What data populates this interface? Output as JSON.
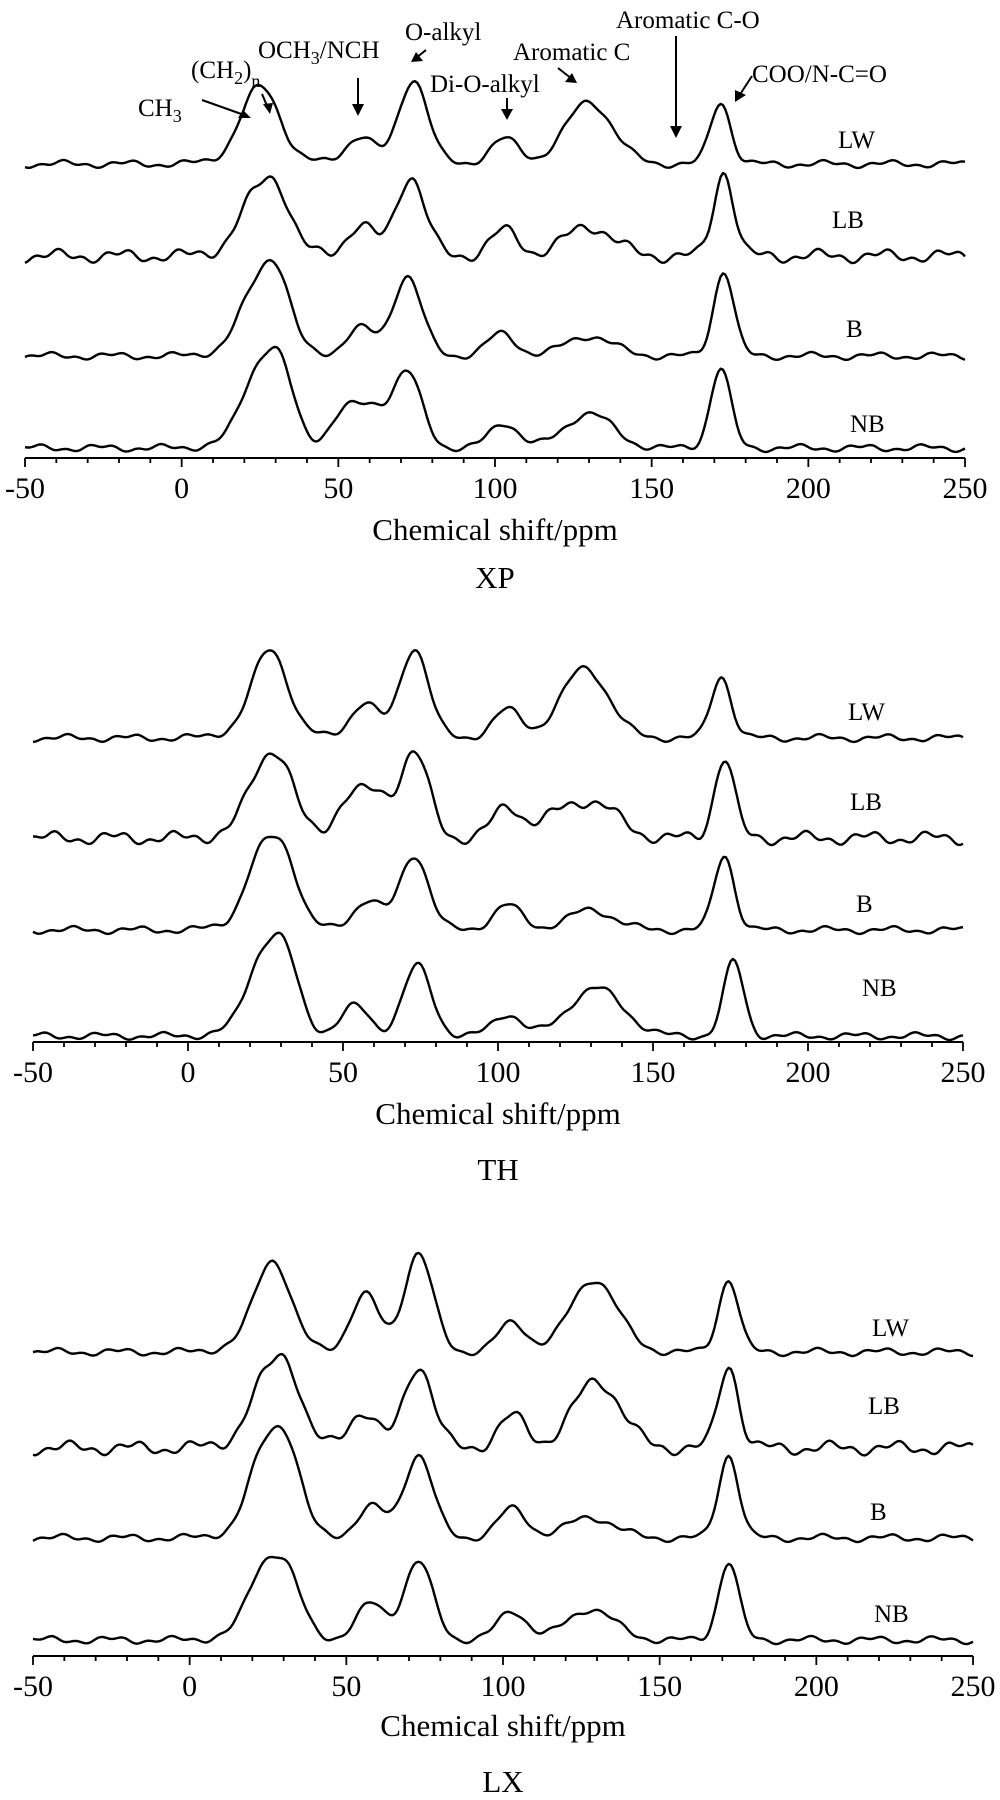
{
  "chart_data": [
    {
      "type": "line",
      "title": "XP",
      "xlabel": "Chemical shift/ppm",
      "ylabel": "",
      "xlim": [
        -50,
        250
      ],
      "xticks": [
        "-50",
        "0",
        "50",
        "100",
        "150",
        "200",
        "250"
      ],
      "legend_position": "right, beside each trace",
      "grid": false,
      "series": [
        {
          "name": "LW",
          "peaks": [
            [
              22,
              0.35
            ],
            [
              28,
              0.38
            ],
            [
              57,
              0.28
            ],
            [
              74,
              0.85
            ],
            [
              103,
              0.25
            ],
            [
              130,
              0.62
            ],
            [
              172,
              0.62
            ]
          ]
        },
        {
          "name": "LB",
          "peaks": [
            [
              22,
              0.3
            ],
            [
              30,
              0.55
            ],
            [
              57,
              0.3
            ],
            [
              73,
              0.8
            ],
            [
              103,
              0.25
            ],
            [
              130,
              0.3
            ],
            [
              173,
              0.85
            ]
          ]
        },
        {
          "name": "B",
          "peaks": [
            [
              22,
              0.35
            ],
            [
              30,
              0.72
            ],
            [
              57,
              0.28
            ],
            [
              72,
              0.8
            ],
            [
              102,
              0.22
            ],
            [
              130,
              0.2
            ],
            [
              173,
              0.85
            ]
          ]
        },
        {
          "name": "NB",
          "peaks": [
            [
              23,
              0.45
            ],
            [
              31,
              0.72
            ],
            [
              52,
              0.35
            ],
            [
              61,
              0.35
            ],
            [
              72,
              0.75
            ],
            [
              103,
              0.25
            ],
            [
              130,
              0.35
            ],
            [
              172,
              0.8
            ]
          ]
        }
      ],
      "annotations": [
        "CH3",
        "(CH2)n",
        "OCH3/NCH",
        "O-alkyl",
        "Di-O-alkyl",
        "Aromatic C",
        "Aromatic C-O",
        "COO/N-C=O"
      ]
    },
    {
      "type": "line",
      "title": "TH",
      "xlabel": "Chemical shift/ppm",
      "ylabel": "",
      "xlim": [
        -50,
        250
      ],
      "xticks": [
        "-50",
        "0",
        "50",
        "100",
        "150",
        "200",
        "250"
      ],
      "legend_position": "right, beside each trace",
      "grid": false,
      "series": [
        {
          "name": "LW",
          "peaks": [
            [
              24,
              0.4
            ],
            [
              29,
              0.42
            ],
            [
              57,
              0.35
            ],
            [
              73,
              0.9
            ],
            [
              103,
              0.28
            ],
            [
              128,
              0.7
            ],
            [
              172,
              0.62
            ]
          ]
        },
        {
          "name": "LB",
          "peaks": [
            [
              23,
              0.38
            ],
            [
              30,
              0.55
            ],
            [
              52,
              0.38
            ],
            [
              61,
              0.38
            ],
            [
              73,
              0.85
            ],
            [
              103,
              0.3
            ],
            [
              120,
              0.2
            ],
            [
              132,
              0.3
            ],
            [
              173,
              0.8
            ]
          ]
        },
        {
          "name": "B",
          "peaks": [
            [
              23,
              0.5
            ],
            [
              31,
              0.6
            ],
            [
              58,
              0.3
            ],
            [
              73,
              0.75
            ],
            [
              103,
              0.25
            ],
            [
              130,
              0.2
            ],
            [
              173,
              0.75
            ]
          ]
        },
        {
          "name": "NB",
          "peaks": [
            [
              23,
              0.5
            ],
            [
              31,
              0.7
            ],
            [
              54,
              0.3
            ],
            [
              74,
              0.7
            ],
            [
              103,
              0.22
            ],
            [
              128,
              0.3
            ],
            [
              136,
              0.25
            ],
            [
              176,
              0.75
            ]
          ]
        }
      ]
    },
    {
      "type": "line",
      "title": "LX",
      "xlabel": "Chemical shift/ppm",
      "ylabel": "",
      "xlim": [
        -50,
        250
      ],
      "xticks": [
        "-50",
        "0",
        "50",
        "100",
        "150",
        "200",
        "250"
      ],
      "legend_position": "right, beside each trace",
      "grid": false,
      "series": [
        {
          "name": "LW",
          "peaks": [
            [
              24,
              0.4
            ],
            [
              29,
              0.42
            ],
            [
              56,
              0.55
            ],
            [
              73,
              0.95
            ],
            [
              103,
              0.28
            ],
            [
              129,
              0.7
            ],
            [
              172,
              0.7
            ]
          ]
        },
        {
          "name": "LB",
          "peaks": [
            [
              23,
              0.35
            ],
            [
              31,
              0.65
            ],
            [
              55,
              0.35
            ],
            [
              73,
              0.8
            ],
            [
              103,
              0.3
            ],
            [
              130,
              0.65
            ],
            [
              172,
              0.8
            ]
          ]
        },
        {
          "name": "B",
          "peaks": [
            [
              23,
              0.55
            ],
            [
              31,
              0.75
            ],
            [
              58,
              0.3
            ],
            [
              73,
              0.8
            ],
            [
              103,
              0.28
            ],
            [
              128,
              0.2
            ],
            [
              172,
              0.8
            ]
          ]
        },
        {
          "name": "NB",
          "peaks": [
            [
              23,
              0.45
            ],
            [
              31,
              0.5
            ],
            [
              58,
              0.35
            ],
            [
              73,
              0.75
            ],
            [
              103,
              0.28
            ],
            [
              128,
              0.3
            ],
            [
              172,
              0.75
            ]
          ]
        }
      ]
    }
  ]
}
